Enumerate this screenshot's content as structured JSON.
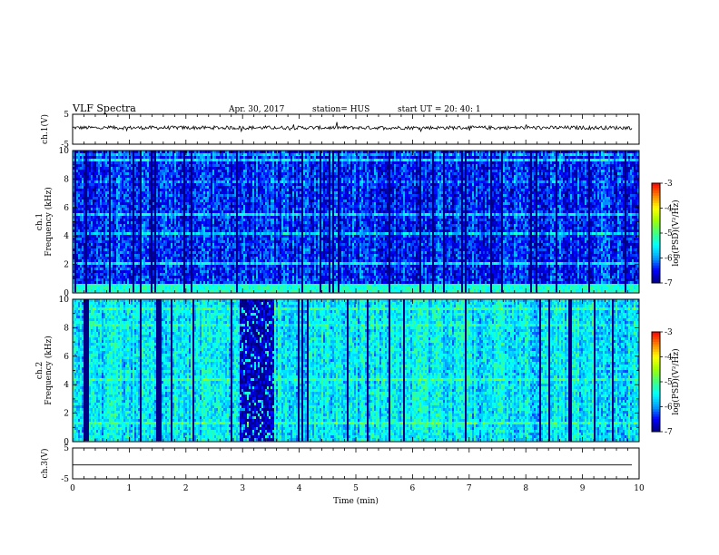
{
  "header": {
    "title": "VLF Spectra",
    "date": "Apr. 30, 2017",
    "station": "station= HUS",
    "start_ut": "start  UT =   20: 40: 1"
  },
  "chart_data": [
    {
      "type": "line",
      "name": "ch1-waveform",
      "ylabel": "ch.1(V)",
      "y_ticks": [
        "5",
        "-5"
      ],
      "ylim": [
        -5,
        5
      ],
      "baseline": 0.5,
      "noise_amplitude": 0.6
    },
    {
      "type": "heatmap",
      "name": "ch1-spectrogram",
      "ylabel": "ch.1\nFrequency (kHz)",
      "ylabel_lines": [
        "ch.1",
        "Frequency (kHz)"
      ],
      "y_ticks": [
        "0",
        "2",
        "4",
        "6",
        "8",
        "10"
      ],
      "ylim": [
        0,
        10
      ],
      "xlim": [
        0,
        10
      ],
      "typical_log_psd": -6.4,
      "low_band_level": -5.3,
      "colorbar": {
        "label": "log(PSD)(V²/Hz)",
        "ticks": [
          "-3",
          "-4",
          "-5",
          "-6",
          "-7"
        ],
        "range": [
          -7,
          -3
        ]
      }
    },
    {
      "type": "heatmap",
      "name": "ch2-spectrogram",
      "ylabel": "ch.2\nFrequency (kHz)",
      "ylabel_lines": [
        "ch.2",
        "Frequency (kHz)"
      ],
      "y_ticks": [
        "0",
        "2",
        "4",
        "6",
        "8",
        "10"
      ],
      "ylim": [
        0,
        10
      ],
      "xlim": [
        0,
        10
      ],
      "typical_log_psd": -5.6,
      "dark_interval_min": [
        2.95,
        3.55
      ],
      "colorbar": {
        "label": "log(PSD)(V²/Hz)",
        "ticks": [
          "-3",
          "-4",
          "-5",
          "-6",
          "-7"
        ],
        "range": [
          -7,
          -3
        ]
      }
    },
    {
      "type": "line",
      "name": "ch3-waveform",
      "ylabel": "ch.3(V)",
      "y_ticks": [
        "5",
        "-5"
      ],
      "ylim": [
        -5,
        5
      ],
      "baseline": -0.5,
      "noise_amplitude": 0
    }
  ],
  "x_axis": {
    "label": "Time  (min)",
    "ticks": [
      "0",
      "1",
      "2",
      "3",
      "4",
      "5",
      "6",
      "7",
      "8",
      "9",
      "10"
    ],
    "xlim": [
      0,
      10
    ]
  },
  "colors": {
    "colormap": [
      "#000080",
      "#0000ff",
      "#00a0ff",
      "#00ffff",
      "#40ff80",
      "#a0ff00",
      "#ffff00",
      "#ff8000",
      "#ff0000",
      "#ffffff"
    ]
  }
}
